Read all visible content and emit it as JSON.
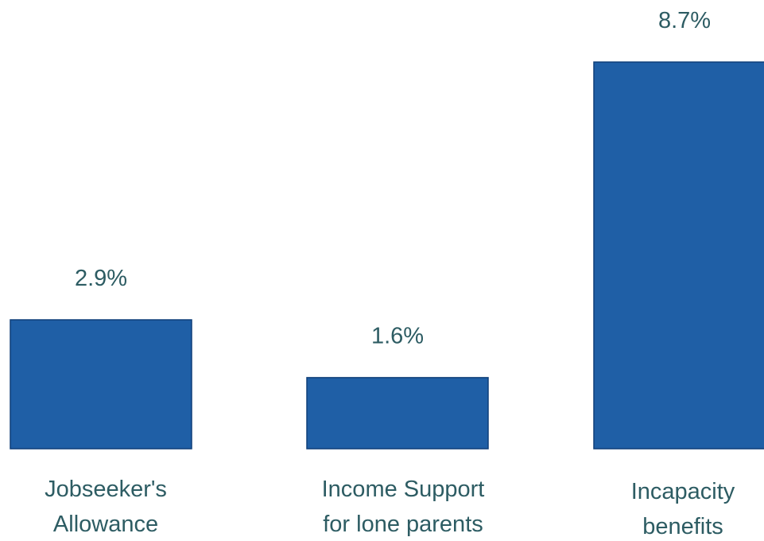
{
  "chart_data": {
    "type": "bar",
    "categories": [
      [
        "Jobseeker's",
        "Allowance"
      ],
      [
        "Income Support",
        "for lone parents"
      ],
      [
        "Incapacity",
        "benefits"
      ]
    ],
    "values": [
      2.9,
      1.6,
      8.7
    ],
    "value_labels": [
      "2.9%",
      "1.6%",
      "8.7%"
    ],
    "unit": "%",
    "ylim": [
      0,
      8.7
    ],
    "grid": false,
    "legend": "none"
  },
  "colors": {
    "bar_fill": "#1f5fa6",
    "bar_stroke": "#0f3f78",
    "text": "#2d5c63"
  }
}
